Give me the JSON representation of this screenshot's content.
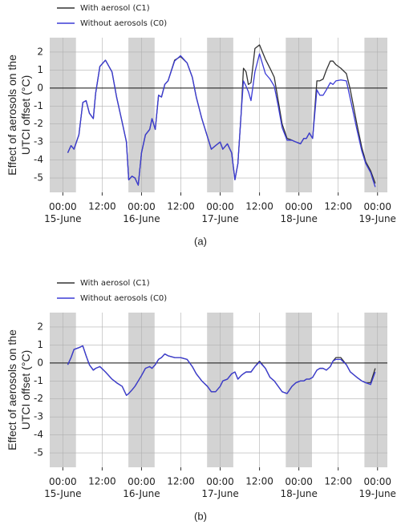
{
  "chart_data": [
    {
      "type": "line",
      "panel_label": "(a)",
      "ylabel": "Effect of aerosols on the\nUTCI offset (°C)",
      "x": [
        1.5,
        2.5,
        3.4,
        4.9,
        6.1,
        7.1,
        8.1,
        9.3,
        10,
        11.3,
        13,
        15,
        16.4,
        18.1,
        19.4,
        20.1,
        21.1,
        22,
        23,
        24,
        25.2,
        26.5,
        27.2,
        28.2,
        29.2,
        30.1,
        31.1,
        32.1,
        34.1,
        35.9,
        37.9,
        39.5,
        40.7,
        42.4,
        44.1,
        45.3,
        46.6,
        48,
        48.8,
        50.2,
        51.5,
        52.5,
        53.4,
        54.4,
        55.1,
        55.9,
        56.6,
        57.4,
        58.6,
        60,
        61.8,
        63.2,
        64.5,
        65.7,
        66.9,
        68.4,
        69.9,
        71.1,
        72.5,
        73.5,
        74.3,
        75.2,
        76.2,
        77.5,
        78.4,
        79.4,
        80.4,
        81.6,
        82.4,
        83.3,
        84.8,
        86.5,
        87.7,
        89.7,
        91.2,
        92.4,
        93.9,
        95.3
      ],
      "series": [
        {
          "name": "With aerosol (C1)",
          "color": "#333333",
          "values": [
            -3.6,
            -3.2,
            -3.4,
            -2.6,
            -0.8,
            -0.7,
            -1.4,
            -1.7,
            -0.3,
            1.2,
            1.55,
            0.9,
            -0.5,
            -1.9,
            -3.0,
            -5.1,
            -4.9,
            -5.0,
            -5.4,
            -3.6,
            -2.6,
            -2.3,
            -1.7,
            -2.3,
            -0.4,
            -0.5,
            0.2,
            0.4,
            1.55,
            1.75,
            1.4,
            0.6,
            -0.5,
            -1.7,
            -2.7,
            -3.4,
            -3.2,
            -3.0,
            -3.4,
            -3.1,
            -3.6,
            -5.1,
            -4.2,
            -1.4,
            1.1,
            0.9,
            0.2,
            0.3,
            2.2,
            2.4,
            1.6,
            1.1,
            0.6,
            -0.7,
            -2.0,
            -2.8,
            -2.9,
            -3.0,
            -3.1,
            -2.8,
            -2.8,
            -2.5,
            -2.8,
            0.4,
            0.4,
            0.5,
            1.0,
            1.5,
            1.5,
            1.3,
            1.1,
            0.8,
            -0.1,
            -2.0,
            -3.3,
            -4.1,
            -4.6,
            -5.3
          ]
        },
        {
          "name": "Without aerosols (C0)",
          "color": "#3b3bd6",
          "values": [
            -3.6,
            -3.2,
            -3.4,
            -2.6,
            -0.8,
            -0.7,
            -1.4,
            -1.7,
            -0.3,
            1.2,
            1.55,
            0.9,
            -0.5,
            -1.9,
            -3.0,
            -5.1,
            -4.9,
            -5.0,
            -5.4,
            -3.6,
            -2.6,
            -2.3,
            -1.7,
            -2.3,
            -0.4,
            -0.5,
            0.2,
            0.4,
            1.5,
            1.8,
            1.4,
            0.6,
            -0.5,
            -1.7,
            -2.7,
            -3.4,
            -3.2,
            -3.0,
            -3.4,
            -3.1,
            -3.6,
            -5.1,
            -4.2,
            -1.4,
            0.4,
            0.1,
            -0.2,
            -0.7,
            0.9,
            1.9,
            0.8,
            0.5,
            0.1,
            -1.0,
            -2.2,
            -2.9,
            -2.9,
            -3.0,
            -3.1,
            -2.8,
            -2.8,
            -2.5,
            -2.8,
            -0.1,
            -0.4,
            -0.4,
            -0.1,
            0.3,
            0.2,
            0.4,
            0.45,
            0.4,
            -0.6,
            -2.3,
            -3.5,
            -4.2,
            -4.7,
            -5.5
          ]
        }
      ],
      "xlim": [
        -4,
        99
      ],
      "xticks": [
        {
          "value": 0,
          "label": "00:00\n15-June"
        },
        {
          "value": 12,
          "label": "12:00"
        },
        {
          "value": 24,
          "label": "00:00\n16-June"
        },
        {
          "value": 36,
          "label": "12:00"
        },
        {
          "value": 48,
          "label": "00:00\n17-June"
        },
        {
          "value": 60,
          "label": "12:00"
        },
        {
          "value": 72,
          "label": "00:00\n18-June"
        },
        {
          "value": 84,
          "label": "12:00"
        },
        {
          "value": 96,
          "label": "00:00\n19-June"
        }
      ],
      "ylim": [
        -5.8,
        2.8
      ],
      "yticks": [
        2,
        1,
        0,
        -1,
        -2,
        -3,
        -4,
        -5
      ],
      "hline": 0,
      "shaded": [
        [
          -4,
          4
        ],
        [
          20,
          28
        ],
        [
          44,
          52
        ],
        [
          68,
          76
        ],
        [
          92,
          99
        ]
      ],
      "shade_color": "#d3d3d3",
      "grid": true,
      "legend": "above-left"
    },
    {
      "type": "line",
      "panel_label": "(b)",
      "ylabel": "Effect of aerosols on the\nUTCI offset (°C)",
      "x": [
        1.5,
        2.5,
        3.4,
        4.9,
        6.1,
        7.1,
        8.1,
        9.3,
        10,
        11.3,
        13,
        15,
        16.4,
        18.1,
        19.4,
        20.1,
        21.1,
        22,
        23,
        24,
        25.2,
        26.5,
        27.2,
        28.2,
        29.2,
        30.1,
        31.1,
        32.1,
        34.1,
        35.9,
        37.9,
        39.5,
        40.7,
        42.4,
        44.1,
        45.3,
        46.6,
        48,
        48.8,
        50.2,
        51.5,
        52.5,
        53.4,
        54.4,
        55.1,
        55.9,
        56.6,
        57.4,
        58.6,
        60,
        61.8,
        63.2,
        64.5,
        65.7,
        66.9,
        68.4,
        69.9,
        71.1,
        72.5,
        73.5,
        74.3,
        75.2,
        76.2,
        77.5,
        78.4,
        79.4,
        80.4,
        81.6,
        82.4,
        83.3,
        84.8,
        86.5,
        87.7,
        89.7,
        91.2,
        92.4,
        93.9,
        95.3
      ],
      "series": [
        {
          "name": "With aerosol (C1)",
          "color": "#333333",
          "values": [
            -0.1,
            0.3,
            0.75,
            0.85,
            0.95,
            0.4,
            -0.1,
            -0.4,
            -0.3,
            -0.2,
            -0.5,
            -0.9,
            -1.1,
            -1.3,
            -1.8,
            -1.7,
            -1.5,
            -1.3,
            -1.0,
            -0.7,
            -0.3,
            -0.2,
            -0.3,
            -0.1,
            0.2,
            0.3,
            0.5,
            0.4,
            0.3,
            0.3,
            0.2,
            -0.2,
            -0.6,
            -1.0,
            -1.3,
            -1.6,
            -1.6,
            -1.3,
            -1.0,
            -0.9,
            -0.6,
            -0.5,
            -0.9,
            -0.7,
            -0.6,
            -0.5,
            -0.5,
            -0.5,
            -0.2,
            0.1,
            -0.3,
            -0.8,
            -1.0,
            -1.3,
            -1.6,
            -1.7,
            -1.3,
            -1.1,
            -1.0,
            -1.0,
            -0.9,
            -0.9,
            -0.8,
            -0.4,
            -0.3,
            -0.3,
            -0.4,
            -0.2,
            0.1,
            0.3,
            0.3,
            -0.1,
            -0.5,
            -0.8,
            -1.0,
            -1.1,
            -1.1,
            -0.3
          ]
        },
        {
          "name": "Without aerosols (C0)",
          "color": "#3b3bd6",
          "values": [
            -0.1,
            0.3,
            0.75,
            0.85,
            0.95,
            0.4,
            -0.1,
            -0.4,
            -0.3,
            -0.2,
            -0.5,
            -0.9,
            -1.1,
            -1.3,
            -1.8,
            -1.7,
            -1.5,
            -1.3,
            -1.0,
            -0.7,
            -0.3,
            -0.2,
            -0.3,
            -0.1,
            0.2,
            0.3,
            0.5,
            0.4,
            0.3,
            0.3,
            0.2,
            -0.2,
            -0.6,
            -1.0,
            -1.3,
            -1.6,
            -1.6,
            -1.3,
            -1.0,
            -0.9,
            -0.6,
            -0.5,
            -0.9,
            -0.7,
            -0.6,
            -0.5,
            -0.5,
            -0.5,
            -0.2,
            0.05,
            -0.3,
            -0.8,
            -1.0,
            -1.3,
            -1.6,
            -1.7,
            -1.3,
            -1.1,
            -1.0,
            -1.0,
            -0.9,
            -0.9,
            -0.8,
            -0.4,
            -0.3,
            -0.3,
            -0.4,
            -0.2,
            0.1,
            0.2,
            0.2,
            -0.1,
            -0.5,
            -0.8,
            -1.0,
            -1.1,
            -1.2,
            -0.5
          ]
        }
      ],
      "xlim": [
        -4,
        99
      ],
      "xticks": [
        {
          "value": 0,
          "label": "00:00\n15-June"
        },
        {
          "value": 12,
          "label": "12:00"
        },
        {
          "value": 24,
          "label": "00:00\n16-June"
        },
        {
          "value": 36,
          "label": "12:00"
        },
        {
          "value": 48,
          "label": "00:00\n17-June"
        },
        {
          "value": 60,
          "label": "12:00"
        },
        {
          "value": 72,
          "label": "00:00\n18-June"
        },
        {
          "value": 84,
          "label": "12:00"
        },
        {
          "value": 96,
          "label": "00:00\n19-June"
        }
      ],
      "ylim": [
        -5.8,
        2.8
      ],
      "yticks": [
        2,
        1,
        0,
        -1,
        -2,
        -3,
        -4,
        -5
      ],
      "hline": 0,
      "shaded": [
        [
          -4,
          4
        ],
        [
          20,
          28
        ],
        [
          44,
          52
        ],
        [
          68,
          76
        ],
        [
          92,
          99
        ]
      ],
      "shade_color": "#d3d3d3",
      "grid": true,
      "legend": "above-left"
    }
  ]
}
